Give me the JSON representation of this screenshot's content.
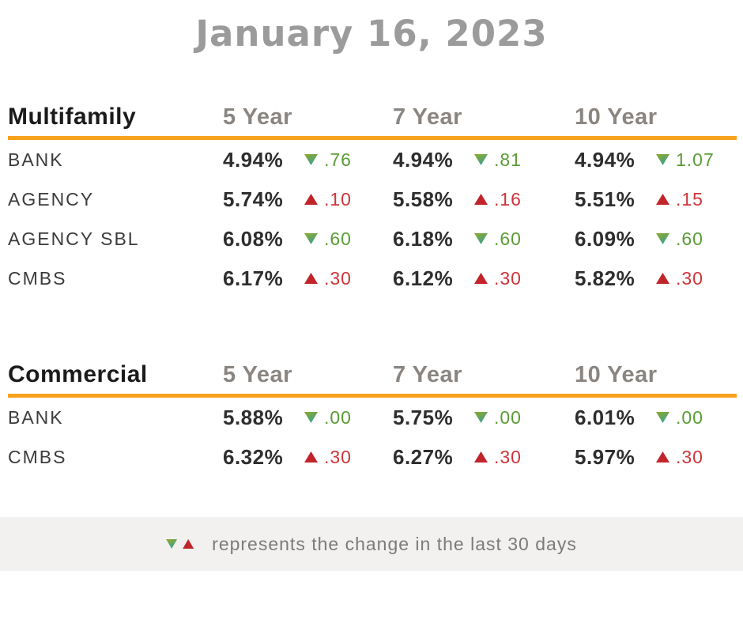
{
  "page": {
    "title": "January 16, 2023"
  },
  "colors": {
    "accent_orange": "#f8a11d",
    "title_gray": "#9b9b9b",
    "header_gray": "#8a8580",
    "text_dark": "#2e2e2e",
    "green": "#5a9c35",
    "red": "#cf3439",
    "footer_bg": "#f2f1ef"
  },
  "legend": {
    "text": "represents the change in the last 30 days"
  },
  "tables": [
    {
      "name": "Multifamily",
      "columns": [
        "5 Year",
        "7 Year",
        "10 Year"
      ],
      "rows": [
        {
          "label": "BANK",
          "cells": [
            {
              "rate": "4.94%",
              "dir": "down",
              "change": ".76"
            },
            {
              "rate": "4.94%",
              "dir": "down",
              "change": ".81"
            },
            {
              "rate": "4.94%",
              "dir": "down",
              "change": "1.07"
            }
          ]
        },
        {
          "label": "AGENCY",
          "cells": [
            {
              "rate": "5.74%",
              "dir": "up",
              "change": ".10"
            },
            {
              "rate": "5.58%",
              "dir": "up",
              "change": ".16"
            },
            {
              "rate": "5.51%",
              "dir": "up",
              "change": ".15"
            }
          ]
        },
        {
          "label": "AGENCY SBL",
          "cells": [
            {
              "rate": "6.08%",
              "dir": "down",
              "change": ".60"
            },
            {
              "rate": "6.18%",
              "dir": "down",
              "change": ".60"
            },
            {
              "rate": "6.09%",
              "dir": "down",
              "change": ".60"
            }
          ]
        },
        {
          "label": "CMBS",
          "cells": [
            {
              "rate": "6.17%",
              "dir": "up",
              "change": ".30"
            },
            {
              "rate": "6.12%",
              "dir": "up",
              "change": ".30"
            },
            {
              "rate": "5.82%",
              "dir": "up",
              "change": ".30"
            }
          ]
        }
      ]
    },
    {
      "name": "Commercial",
      "columns": [
        "5 Year",
        "7 Year",
        "10 Year"
      ],
      "rows": [
        {
          "label": "BANK",
          "cells": [
            {
              "rate": "5.88%",
              "dir": "down",
              "change": ".00"
            },
            {
              "rate": "5.75%",
              "dir": "down",
              "change": ".00"
            },
            {
              "rate": "6.01%",
              "dir": "down",
              "change": ".00"
            }
          ]
        },
        {
          "label": "CMBS",
          "cells": [
            {
              "rate": "6.32%",
              "dir": "up",
              "change": ".30"
            },
            {
              "rate": "6.27%",
              "dir": "up",
              "change": ".30"
            },
            {
              "rate": "5.97%",
              "dir": "up",
              "change": ".30"
            }
          ]
        }
      ]
    }
  ],
  "chart_data": [
    {
      "type": "table",
      "title": "Multifamily",
      "columns": [
        "5 Year",
        "7 Year",
        "10 Year"
      ],
      "rows": [
        {
          "label": "BANK",
          "rates_pct": [
            4.94,
            4.94,
            4.94
          ],
          "change_30d": [
            -0.76,
            -0.81,
            -1.07
          ]
        },
        {
          "label": "AGENCY",
          "rates_pct": [
            5.74,
            5.58,
            5.51
          ],
          "change_30d": [
            0.1,
            0.16,
            0.15
          ]
        },
        {
          "label": "AGENCY SBL",
          "rates_pct": [
            6.08,
            6.18,
            6.09
          ],
          "change_30d": [
            -0.6,
            -0.6,
            -0.6
          ]
        },
        {
          "label": "CMBS",
          "rates_pct": [
            6.17,
            6.12,
            5.82
          ],
          "change_30d": [
            0.3,
            0.3,
            0.3
          ]
        }
      ]
    },
    {
      "type": "table",
      "title": "Commercial",
      "columns": [
        "5 Year",
        "7 Year",
        "10 Year"
      ],
      "rows": [
        {
          "label": "BANK",
          "rates_pct": [
            5.88,
            5.75,
            6.01
          ],
          "change_30d": [
            0.0,
            0.0,
            0.0
          ]
        },
        {
          "label": "CMBS",
          "rates_pct": [
            6.32,
            6.27,
            5.97
          ],
          "change_30d": [
            0.3,
            0.3,
            0.3
          ]
        }
      ]
    }
  ]
}
